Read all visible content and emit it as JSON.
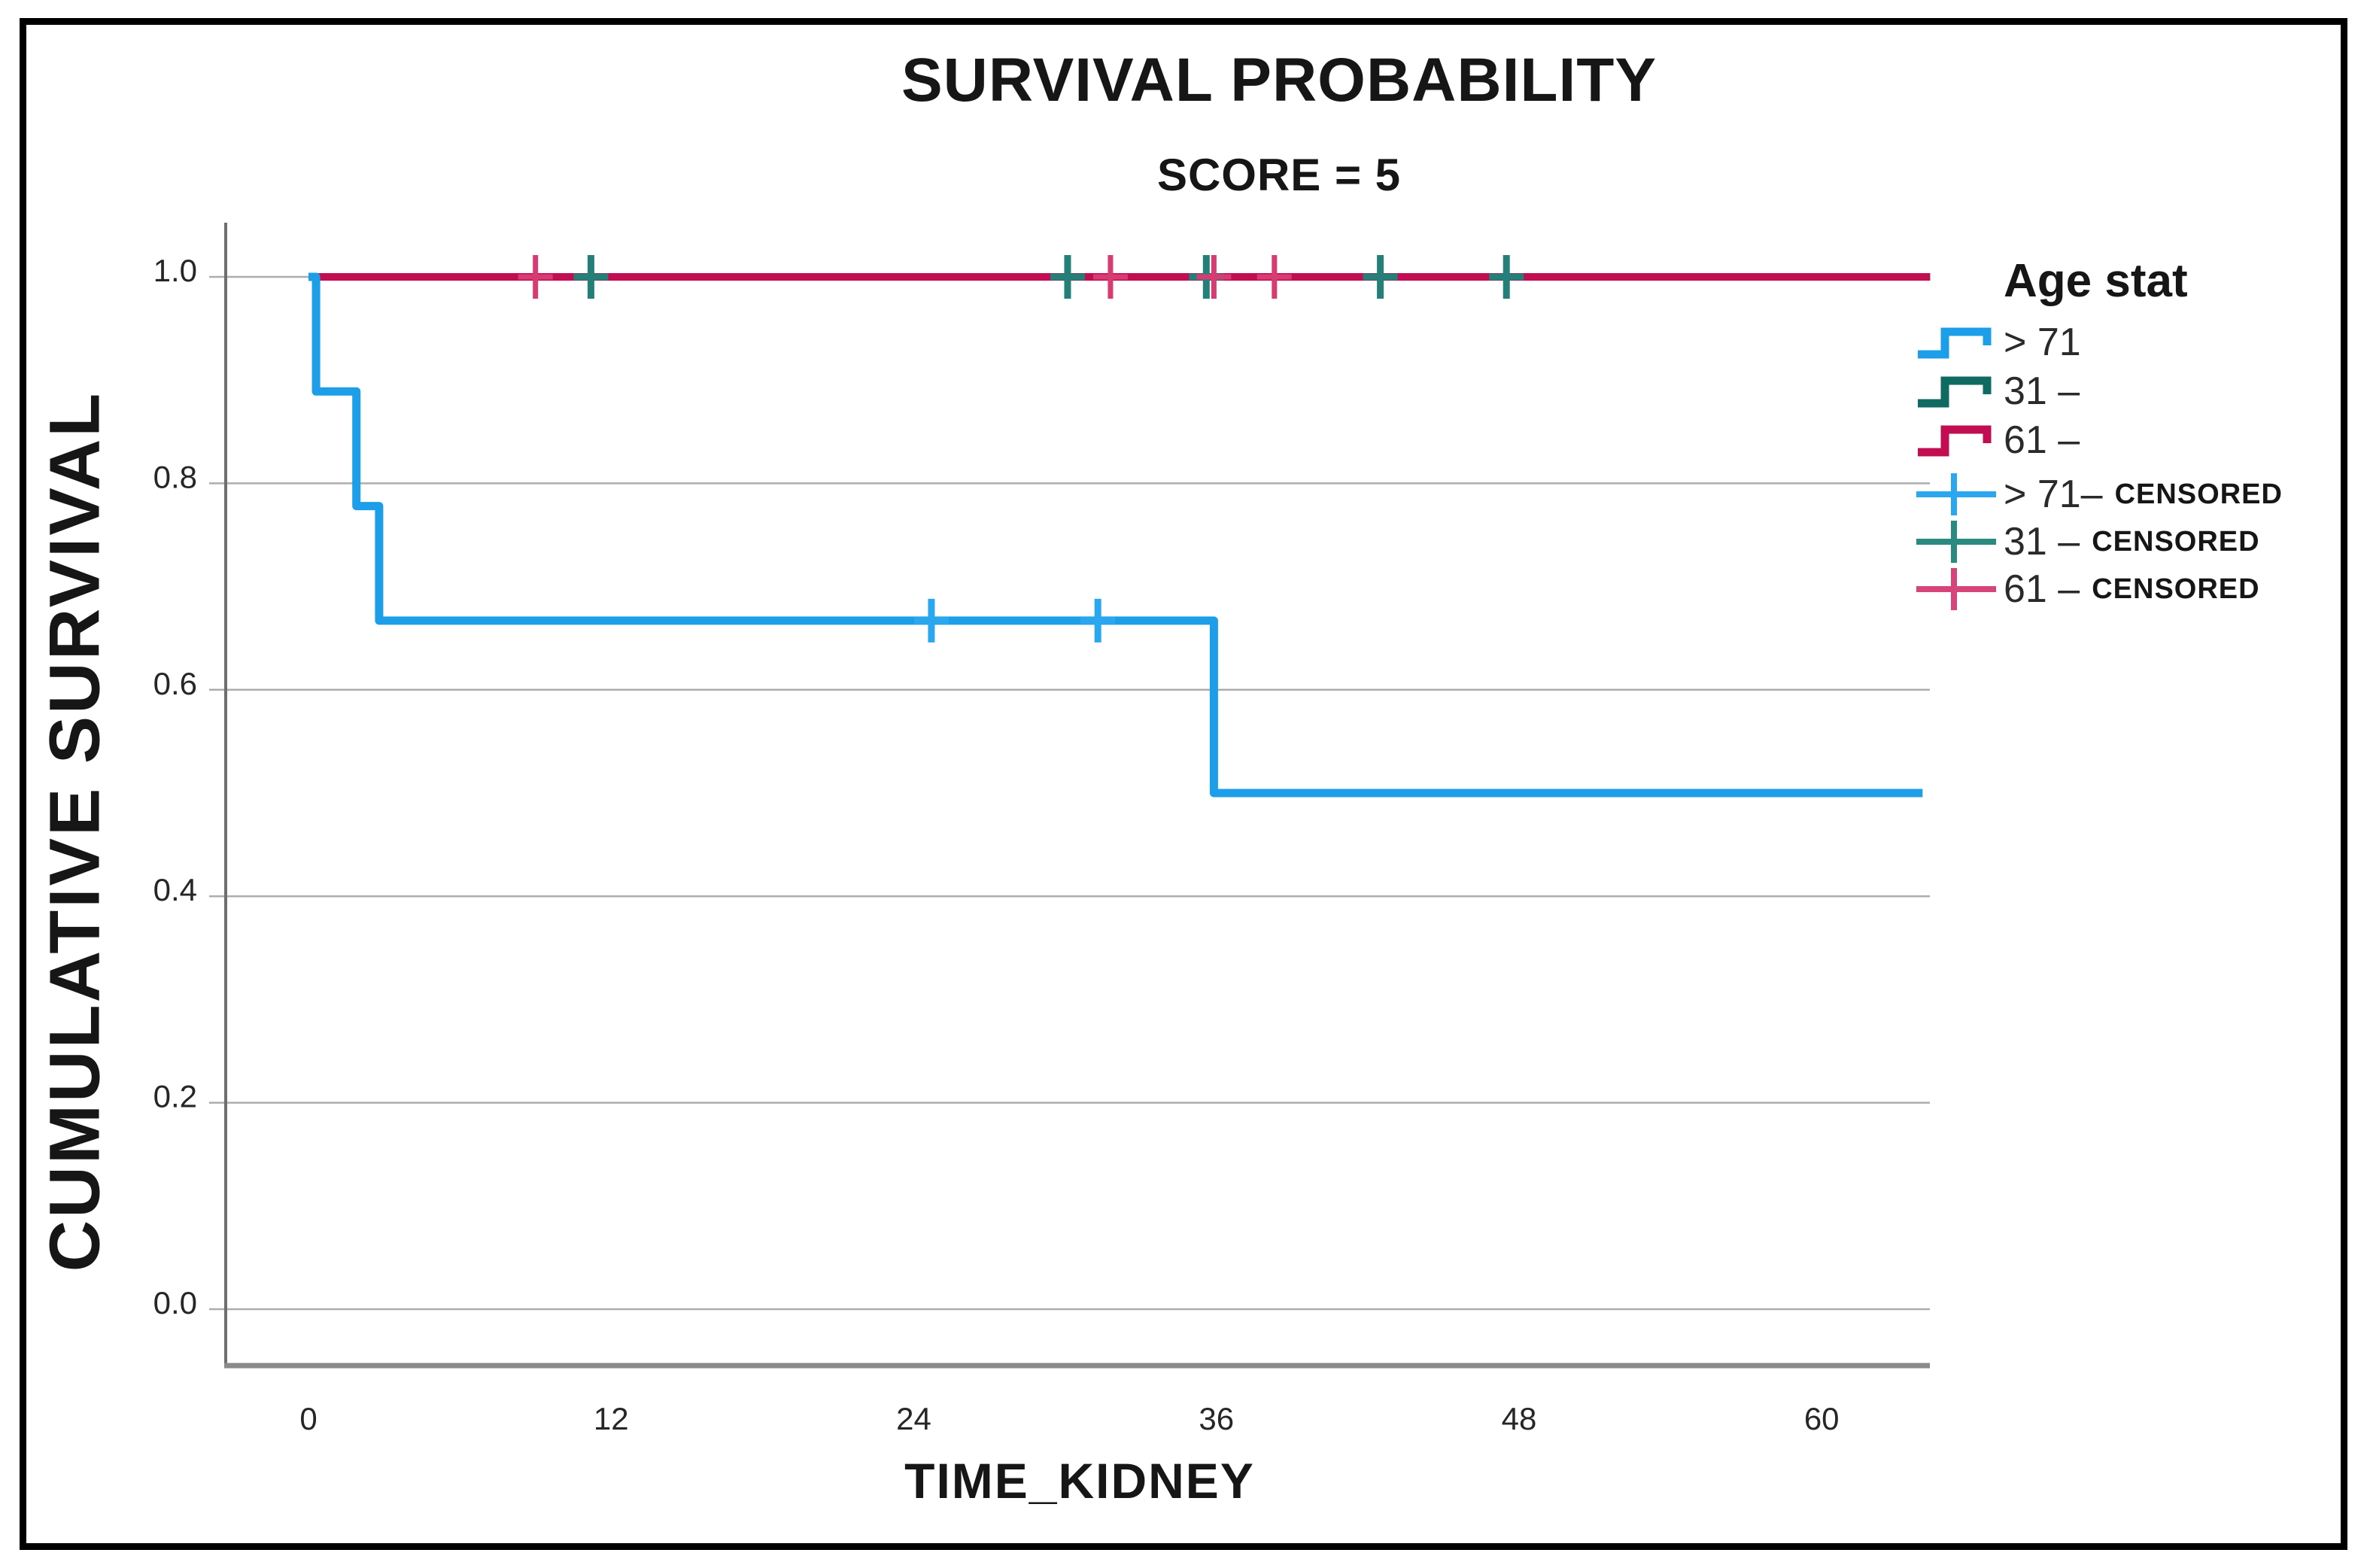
{
  "chart_data": {
    "type": "line",
    "subtype": "kaplan-meier-step-survival",
    "title": "SURVIVAL PROBABILITY",
    "subtitle": "SCORE = 5",
    "xlabel": "TIME_KIDNEY",
    "ylabel": "CUMULATIVE SURVIVAL",
    "x_ticks": [
      0,
      12,
      24,
      36,
      48,
      60
    ],
    "x_tick_labels": [
      "0",
      "12",
      "24",
      "36",
      "48",
      "60"
    ],
    "y_ticks": [
      0.0,
      0.2,
      0.4,
      0.6,
      0.8,
      1.0
    ],
    "y_tick_labels": [
      "0.0",
      "0.2",
      "0.4",
      "0.6",
      "0.8",
      "1.0"
    ],
    "xlim": [
      -3.3,
      64.3
    ],
    "ylim": [
      -0.055,
      1.08
    ],
    "grid": "horizontal-only",
    "legend_position": "right",
    "series": [
      {
        "name": "31 –",
        "color": "#0F6A61",
        "width": 10,
        "points": [
          [
            0.0,
            1.0
          ],
          [
            64.3,
            1.0
          ]
        ]
      },
      {
        "name": "61 –",
        "color": "#C20D53",
        "width": 10,
        "points": [
          [
            0.25,
            1.0
          ],
          [
            64.3,
            1.0
          ]
        ]
      },
      {
        "name": "> 71",
        "color": "#1C9FE8",
        "width": 11,
        "points": [
          [
            0.0,
            1.0
          ],
          [
            0.3,
            1.0
          ],
          [
            0.3,
            0.889
          ],
          [
            1.9,
            0.889
          ],
          [
            1.9,
            0.778
          ],
          [
            2.8,
            0.778
          ],
          [
            2.8,
            0.667
          ],
          [
            35.9,
            0.667
          ],
          [
            35.9,
            0.5
          ],
          [
            64.0,
            0.5
          ]
        ]
      }
    ],
    "censored": [
      {
        "series": "31 –",
        "color": "#237F78",
        "marks": [
          [
            11.2,
            1.0
          ],
          [
            30.1,
            1.0
          ],
          [
            35.6,
            1.0
          ],
          [
            42.5,
            1.0
          ],
          [
            47.5,
            1.0
          ]
        ]
      },
      {
        "series": "61 –",
        "color": "#D63C72",
        "marks": [
          [
            9.0,
            1.0
          ],
          [
            31.8,
            1.0
          ],
          [
            35.9,
            1.0
          ],
          [
            38.3,
            1.0
          ]
        ]
      },
      {
        "series": "> 71",
        "color": "#2BA7EF",
        "marks": [
          [
            24.7,
            0.667
          ],
          [
            31.3,
            0.667
          ]
        ]
      }
    ]
  },
  "legend": {
    "title": "Age stat",
    "entries": [
      {
        "label": "> 71",
        "glyph": "step",
        "color": "#1C9FE8",
        "censored_label": ""
      },
      {
        "label": "31 –",
        "glyph": "step",
        "color": "#0F6A61",
        "censored_label": ""
      },
      {
        "label": "61 –",
        "glyph": "step",
        "color": "#C20D53",
        "censored_label": ""
      },
      {
        "label": "> 71–",
        "glyph": "plus",
        "color": "#2BA7EF",
        "censored_label": "CENSORED"
      },
      {
        "label": "31 –",
        "glyph": "plus",
        "color": "#2B8A80",
        "censored_label": "CENSORED"
      },
      {
        "label": "61 –",
        "glyph": "plus",
        "color": "#D7447A",
        "censored_label": "CENSORED"
      }
    ]
  },
  "colors": {
    "background": "#FFFFFF",
    "frame_border": "#000000",
    "gridline": "#ADADAD",
    "y_axis": "#6E6E6E",
    "x_axis": "#8A8A8A",
    "tick_text": "#262626",
    "blue_line": "#1C9FE8",
    "teal_line": "#0F6A61",
    "crimson_line": "#C20D53",
    "teal_censor": "#237F78",
    "pink_censor": "#D63C72",
    "blue_censor": "#2BA7EF"
  }
}
